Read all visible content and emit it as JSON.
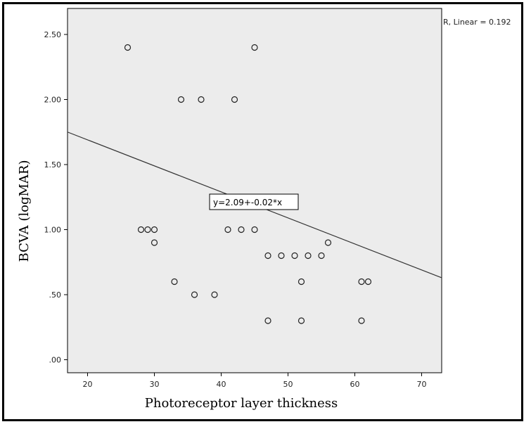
{
  "chart_data": {
    "type": "scatter",
    "title": "",
    "xlabel": "Photoreceptor layer thickness",
    "ylabel": "BCVA (logMAR)",
    "xlim": [
      17,
      73
    ],
    "ylim": [
      -0.1,
      2.7
    ],
    "x_ticks": [
      20,
      30,
      40,
      50,
      60,
      70
    ],
    "x_tick_labels": [
      "20",
      "30",
      "40",
      "50",
      "60",
      "70"
    ],
    "y_ticks": [
      0,
      0.5,
      1.0,
      1.5,
      2.0,
      2.5
    ],
    "y_tick_labels": [
      ".00",
      ".50",
      "1.00",
      "1.50",
      "2.00",
      "2.50"
    ],
    "grid": false,
    "background_color": "#ececec",
    "series": [
      {
        "points": [
          {
            "x": 26,
            "y": 2.4
          },
          {
            "x": 45,
            "y": 2.4
          },
          {
            "x": 34,
            "y": 2.0
          },
          {
            "x": 37,
            "y": 2.0
          },
          {
            "x": 42,
            "y": 2.0
          },
          {
            "x": 28,
            "y": 1.0
          },
          {
            "x": 29,
            "y": 1.0
          },
          {
            "x": 30,
            "y": 1.0
          },
          {
            "x": 41,
            "y": 1.0
          },
          {
            "x": 43,
            "y": 1.0
          },
          {
            "x": 45,
            "y": 1.0
          },
          {
            "x": 30,
            "y": 0.9
          },
          {
            "x": 56,
            "y": 0.9
          },
          {
            "x": 47,
            "y": 0.8
          },
          {
            "x": 49,
            "y": 0.8
          },
          {
            "x": 51,
            "y": 0.8
          },
          {
            "x": 53,
            "y": 0.8
          },
          {
            "x": 55,
            "y": 0.8
          },
          {
            "x": 33,
            "y": 0.6
          },
          {
            "x": 52,
            "y": 0.6
          },
          {
            "x": 61,
            "y": 0.6
          },
          {
            "x": 62,
            "y": 0.6
          },
          {
            "x": 36,
            "y": 0.5
          },
          {
            "x": 39,
            "y": 0.5
          },
          {
            "x": 47,
            "y": 0.3
          },
          {
            "x": 52,
            "y": 0.3
          },
          {
            "x": 61,
            "y": 0.3
          }
        ]
      }
    ],
    "fit_line": {
      "intercept": 2.09,
      "slope": -0.02,
      "color": "#333333"
    },
    "annotations": {
      "equation": "y=2.09+-0.02*x",
      "r_squared": "R, Linear = 0.192"
    }
  }
}
